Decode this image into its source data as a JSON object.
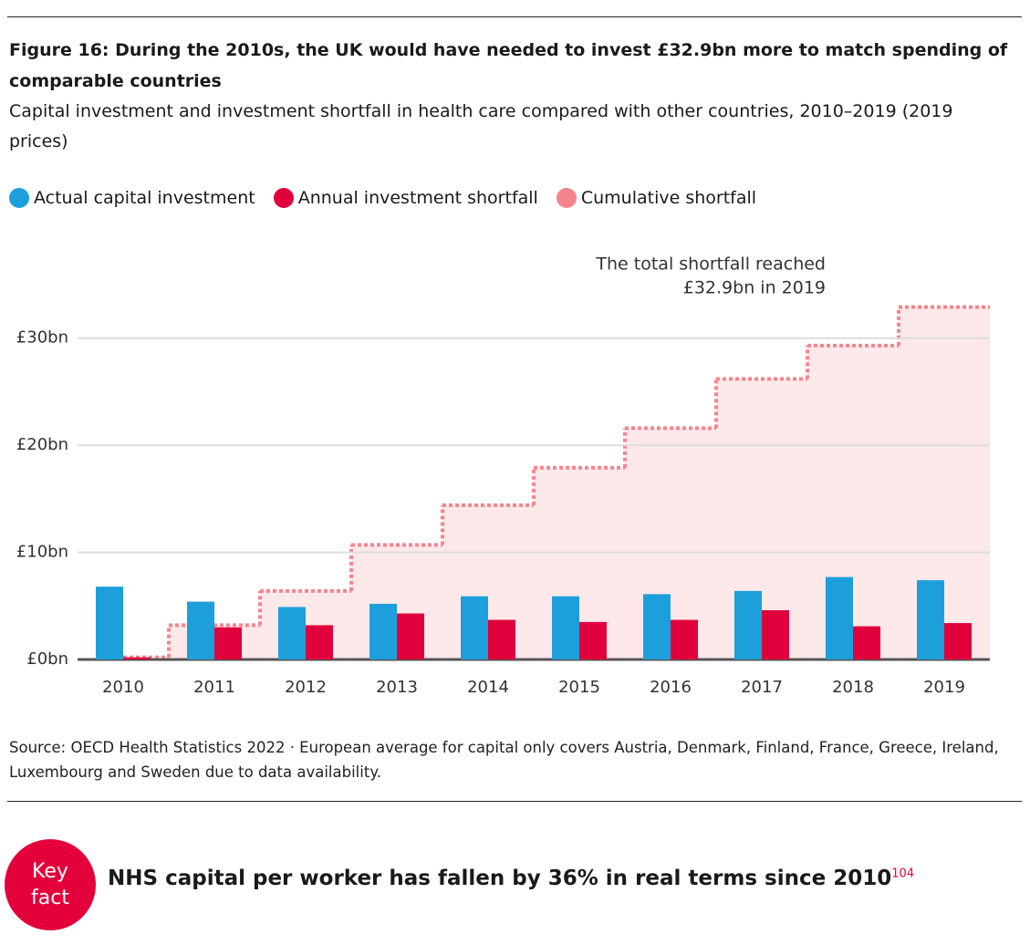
{
  "chart_data": {
    "type": "bar",
    "title": "Figure 16: During the 2010s, the UK would have needed to invest £32.9bn more to match spending of comparable countries",
    "subtitle": "Capital investment and investment shortfall in health care compared with other countries, 2010–2019 (2019 prices)",
    "categories": [
      "2010",
      "2011",
      "2012",
      "2013",
      "2014",
      "2015",
      "2016",
      "2017",
      "2018",
      "2019"
    ],
    "series": [
      {
        "name": "Actual capital investment",
        "color": "#1d9fdb",
        "type": "bar",
        "values": [
          6.8,
          5.4,
          4.9,
          5.2,
          5.9,
          5.9,
          6.1,
          6.4,
          7.7,
          7.4
        ]
      },
      {
        "name": "Annual investment shortfall",
        "color": "#e0003c",
        "type": "bar",
        "values": [
          0.2,
          3.0,
          3.2,
          4.3,
          3.7,
          3.5,
          3.7,
          4.6,
          3.1,
          3.4
        ]
      },
      {
        "name": "Cumulative shortfall",
        "color": "#f4858e",
        "type": "step",
        "values": [
          0.2,
          3.2,
          6.4,
          10.7,
          14.4,
          17.9,
          21.6,
          26.2,
          29.3,
          32.9
        ]
      }
    ],
    "ylim": [
      0,
      35
    ],
    "yticks": [
      {
        "value": 0,
        "label": "£0bn"
      },
      {
        "value": 10,
        "label": "£10bn"
      },
      {
        "value": 20,
        "label": "£20bn"
      },
      {
        "value": 30,
        "label": "£30bn"
      }
    ],
    "grid": true,
    "annotation": [
      "The total shortfall reached",
      "£32.9bn in 2019"
    ],
    "source": "Source: OECD Health Statistics 2022 · European average for capital only covers Austria, Denmark, Finland, France, Greece, Ireland, Luxembourg and Sweden due to data availability."
  },
  "key_fact": {
    "badge": "Key fact",
    "text": "NHS capital per worker has fallen by 36% in real terms since 2010",
    "footnote": "104"
  }
}
